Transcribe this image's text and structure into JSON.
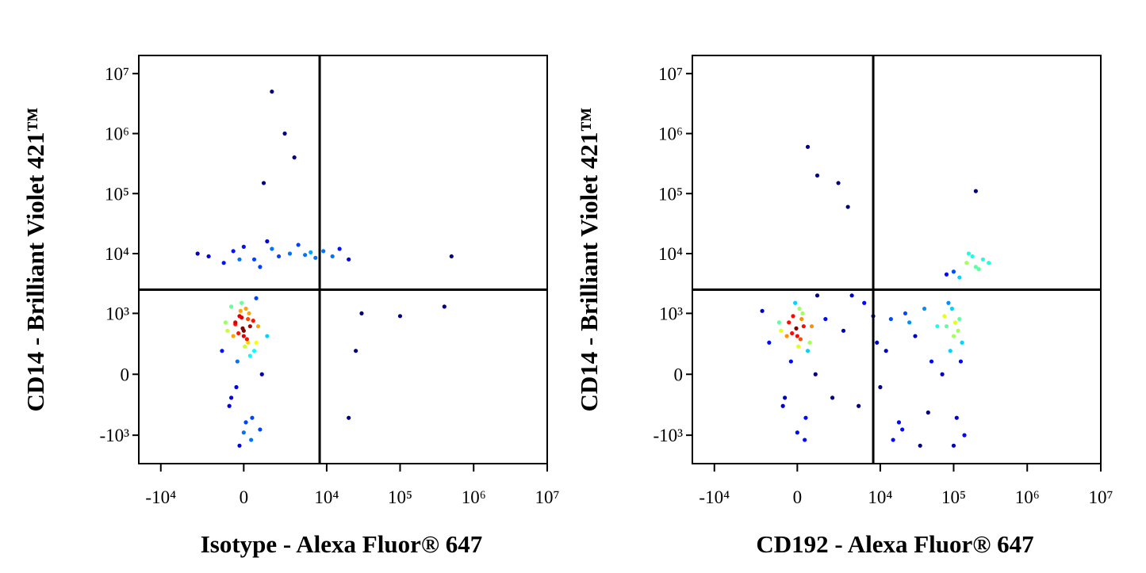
{
  "chart_data": [
    {
      "type": "scatter",
      "x_label": "Isotype - Alexa Fluor® 647",
      "y_label": "CD14 - Brilliant Violet 421™",
      "xscale": "biexponential",
      "yscale": "biexponential",
      "colormap": "jet",
      "xlim": [
        -20000,
        10000000
      ],
      "ylim": [
        -3000,
        20000000
      ],
      "xticks": [
        {
          "value": -10000,
          "label": "-10⁴"
        },
        0,
        {
          "value": 10000,
          "label": "10⁴"
        },
        {
          "value": 100000,
          "label": "10⁵"
        },
        {
          "value": 1000000,
          "label": "10⁶"
        },
        {
          "value": 10000000,
          "label": "10⁷"
        }
      ],
      "yticks": [
        {
          "value": -1000,
          "label": "-10³"
        },
        0,
        {
          "value": 1000,
          "label": "10³"
        },
        {
          "value": 10000,
          "label": "10⁴"
        },
        {
          "value": 100000,
          "label": "10⁵"
        },
        {
          "value": 1000000,
          "label": "10⁶"
        },
        {
          "value": 10000000,
          "label": "10⁷"
        }
      ],
      "quadrant_gate": {
        "x": 8000,
        "y": 2500
      },
      "x": [
        -800,
        -400,
        0,
        300,
        600,
        -200,
        100,
        500,
        -600,
        200,
        -100,
        400,
        0,
        -300,
        700,
        -500,
        150,
        -50,
        250,
        -700,
        900,
        -900,
        350,
        -250,
        50,
        600,
        -400,
        100,
        -150,
        450,
        -350,
        200,
        0,
        -600,
        800,
        -100,
        300,
        -200,
        1200,
        -1100,
        -2000,
        -500,
        500,
        1500,
        3000,
        5000,
        -1000,
        0,
        2000,
        7000,
        9000,
        12000,
        -3000,
        800,
        4000,
        -200,
        1200,
        6000,
        15000,
        20000,
        1500,
        2500,
        3500,
        1000,
        30000,
        100000,
        400000,
        20000,
        25000,
        500000
      ],
      "y": [
        500,
        700,
        400,
        600,
        300,
        900,
        1200,
        200,
        -200,
        800,
        1500,
        -500,
        -900,
        100,
        600,
        400,
        350,
        550,
        1000,
        -300,
        0,
        700,
        -1200,
        450,
        250,
        1800,
        650,
        -600,
        1100,
        750,
        -100,
        300,
        500,
        1300,
        -800,
        850,
        150,
        -1500,
        400,
        200,
        9000,
        11000,
        8000,
        12000,
        10000,
        9500,
        7000,
        13000,
        9000,
        8500,
        11000,
        9000,
        10000,
        6000,
        14000,
        8000,
        16000,
        10500,
        12000,
        8000,
        5000000,
        1000000,
        400000,
        150000,
        1000,
        900,
        1300,
        -500,
        200,
        9000
      ]
    },
    {
      "type": "scatter",
      "x_label": "CD192 - Alexa Fluor® 647",
      "y_label": "CD14 - Brilliant Violet 421™",
      "xscale": "biexponential",
      "yscale": "biexponential",
      "colormap": "jet",
      "xlim": [
        -20000,
        10000000
      ],
      "ylim": [
        -3000,
        20000000
      ],
      "xticks": [
        {
          "value": -10000,
          "label": "-10⁴"
        },
        0,
        {
          "value": 10000,
          "label": "10⁴"
        },
        {
          "value": 100000,
          "label": "10⁵"
        },
        {
          "value": 1000000,
          "label": "10⁶"
        },
        {
          "value": 10000000,
          "label": "10⁷"
        }
      ],
      "yticks": [
        {
          "value": -1000,
          "label": "-10³"
        },
        0,
        {
          "value": 1000,
          "label": "10³"
        },
        {
          "value": 10000,
          "label": "10⁴"
        },
        {
          "value": 100000,
          "label": "10⁵"
        },
        {
          "value": 1000000,
          "label": "10⁶"
        },
        {
          "value": 10000000,
          "label": "10⁷"
        }
      ],
      "quadrant_gate": {
        "x": 8000,
        "y": 2500
      },
      "x": [
        -800,
        -400,
        0,
        300,
        600,
        -200,
        100,
        500,
        -600,
        200,
        -100,
        400,
        0,
        -300,
        700,
        -500,
        150,
        -50,
        250,
        -700,
        900,
        -900,
        350,
        -250,
        50,
        1500,
        -1500,
        2000,
        -2000,
        1000,
        3000,
        5000,
        8000,
        12000,
        20000,
        30000,
        40000,
        15000,
        25000,
        6000,
        10000,
        50000,
        4000,
        18000,
        35000,
        60000,
        9000,
        22000,
        45000,
        14000,
        80000,
        100000,
        120000,
        90000,
        110000,
        130000,
        95000,
        105000,
        70000,
        140000,
        85000,
        115000,
        100000,
        125000,
        75000,
        100000,
        150000,
        200000,
        250000,
        180000,
        120000,
        300000,
        220000,
        160000,
        80000,
        500,
        1000,
        2500,
        3500,
        200000
      ],
      "y": [
        500,
        700,
        400,
        600,
        300,
        900,
        1200,
        200,
        -200,
        800,
        1500,
        -500,
        -900,
        100,
        600,
        400,
        350,
        550,
        1000,
        -300,
        0,
        700,
        -1200,
        450,
        250,
        800,
        300,
        -200,
        1100,
        2000,
        500,
        -300,
        900,
        200,
        -800,
        400,
        1200,
        -1200,
        700,
        1500,
        -100,
        100,
        2000,
        -600,
        -1500,
        600,
        300,
        1000,
        -400,
        800,
        600,
        400,
        800,
        200,
        -500,
        300,
        1200,
        700,
        0,
        -1000,
        1500,
        500,
        -1500,
        100,
        900,
        5000,
        7000,
        6000,
        8000,
        9000,
        4000,
        7000,
        5500,
        10000,
        4500,
        600000,
        200000,
        150000,
        60000,
        110000
      ]
    }
  ]
}
